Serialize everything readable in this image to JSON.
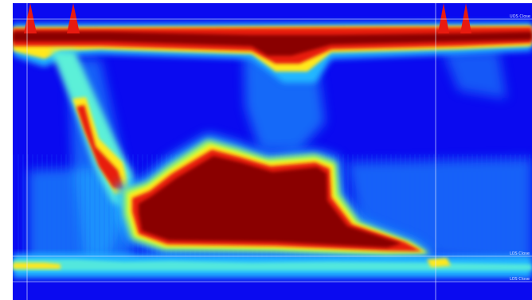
{
  "chart_data": {
    "type": "heatmap",
    "title": "",
    "xlabel": "",
    "ylabel": "",
    "colorscale": [
      "#0a0af0",
      "#1e5cff",
      "#22b8ff",
      "#5cf0d8",
      "#b8ff4a",
      "#ffe81e",
      "#ff7a10",
      "#e81a10",
      "#8a0000"
    ],
    "reference_lines": {
      "horizontal_labels": [
        "UOS Close",
        "LOS Close",
        "LOS Close"
      ]
    },
    "regions": [
      {
        "name": "upper-sphincter-band",
        "level": "high"
      },
      {
        "name": "contraction-front",
        "level": "high"
      },
      {
        "name": "distal-contraction",
        "level": "high"
      },
      {
        "name": "lower-sphincter-band",
        "level": "medium"
      }
    ]
  }
}
